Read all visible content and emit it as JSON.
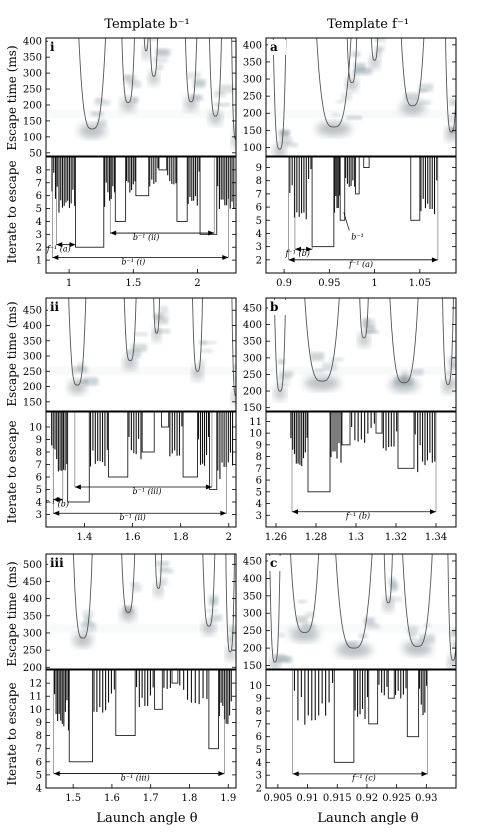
{
  "column_titles": [
    "Template b⁻¹",
    "Template f⁻¹"
  ],
  "x_axis_label": "Launch angle θ",
  "y_label_escape": "Escape time (ms)",
  "y_label_iterate": "Iterate to escape",
  "chart_data": [
    {
      "type": "heatmap",
      "panel": "i",
      "kind": "escape",
      "xlim": [
        0.82,
        2.3
      ],
      "ylim": [
        40,
        410
      ],
      "yticks": [
        50,
        100,
        150,
        200,
        250,
        300,
        350,
        400
      ],
      "curves": [
        {
          "center": 1.18,
          "bottom": 125,
          "width": 0.19
        },
        {
          "center": 1.46,
          "bottom": 208,
          "width": 0.1
        },
        {
          "center": 1.66,
          "bottom": 290,
          "width": 0.07
        },
        {
          "center": 1.6,
          "bottom": 370,
          "width": 0.05
        },
        {
          "center": 1.95,
          "bottom": 210,
          "width": 0.09
        },
        {
          "center": 2.14,
          "bottom": 165,
          "width": 0.09
        },
        {
          "center": 2.3,
          "bottom": 92,
          "width": 0.06
        }
      ]
    },
    {
      "type": "bar",
      "panel": "i",
      "kind": "iterate",
      "xlim": [
        0.82,
        2.3
      ],
      "ylim": [
        0,
        9
      ],
      "xticks": [
        1,
        1.5,
        2
      ],
      "xtick_labels": [
        "1",
        "1.5",
        "2"
      ],
      "yticks": [
        1,
        2,
        3,
        4,
        5,
        6,
        7,
        8
      ],
      "boxes": [
        {
          "x0": 1.05,
          "x1": 1.27,
          "y": 2
        },
        {
          "x0": 1.36,
          "x1": 1.44,
          "y": 4
        },
        {
          "x0": 1.52,
          "x1": 1.62,
          "y": 6
        },
        {
          "x0": 1.7,
          "x1": 1.76,
          "y": 8
        },
        {
          "x0": 1.84,
          "x1": 1.92,
          "y": 4
        },
        {
          "x0": 2.02,
          "x1": 2.15,
          "y": 3
        }
      ],
      "spike_clusters": [
        {
          "x0": 0.86,
          "x1": 1.05,
          "ymin": 3,
          "ymax": 8.6,
          "n": 14
        },
        {
          "x0": 1.27,
          "x1": 1.36,
          "ymin": 4,
          "ymax": 8.6,
          "n": 7
        },
        {
          "x0": 1.44,
          "x1": 1.52,
          "ymin": 5,
          "ymax": 8.6,
          "n": 6
        },
        {
          "x0": 1.62,
          "x1": 1.7,
          "ymin": 6,
          "ymax": 8.6,
          "n": 5
        },
        {
          "x0": 1.76,
          "x1": 1.84,
          "ymin": 6,
          "ymax": 8.6,
          "n": 5
        },
        {
          "x0": 1.92,
          "x1": 2.02,
          "ymin": 4,
          "ymax": 8.6,
          "n": 7
        },
        {
          "x0": 2.15,
          "x1": 2.29,
          "ymin": 3,
          "ymax": 8.6,
          "n": 10
        }
      ],
      "arrows": [
        {
          "x0": 0.9,
          "x1": 1.05,
          "y": 2.2,
          "label": "f⁻¹ (a)",
          "lx": 0.92,
          "ly": 1.9
        },
        {
          "x0": 1.32,
          "x1": 2.13,
          "y": 3.1,
          "label": "b⁻¹ (ii)",
          "lx": 1.6,
          "ly": 2.8
        },
        {
          "x0": 0.87,
          "x1": 2.24,
          "y": 1.2,
          "label": "b⁻¹ (i)",
          "lx": 1.5,
          "ly": 0.9
        }
      ]
    },
    {
      "type": "heatmap",
      "panel": "a",
      "kind": "escape",
      "xlim": [
        0.88,
        1.09
      ],
      "ylim": [
        75,
        420
      ],
      "yticks": [
        100,
        150,
        200,
        250,
        300,
        350,
        400
      ],
      "curves": [
        {
          "center": 0.955,
          "bottom": 160,
          "width": 0.035
        },
        {
          "center": 1.042,
          "bottom": 222,
          "width": 0.025
        },
        {
          "center": 0.975,
          "bottom": 290,
          "width": 0.012
        },
        {
          "center": 1.0,
          "bottom": 355,
          "width": 0.01
        },
        {
          "center": 0.895,
          "bottom": 95,
          "width": 0.012
        },
        {
          "center": 1.085,
          "bottom": 145,
          "width": 0.012
        }
      ]
    },
    {
      "type": "bar",
      "panel": "a",
      "kind": "iterate",
      "xlim": [
        0.88,
        1.09
      ],
      "ylim": [
        1,
        9.8
      ],
      "xticks": [
        0.9,
        0.95,
        1,
        1.05
      ],
      "xtick_labels": [
        "0.9",
        "0.95",
        "1",
        "1.05"
      ],
      "yticks": [
        2,
        3,
        4,
        5,
        6,
        7,
        8,
        9
      ],
      "boxes": [
        {
          "x0": 0.931,
          "x1": 0.955,
          "y": 3
        },
        {
          "x0": 0.962,
          "x1": 0.967,
          "y": 5
        },
        {
          "x0": 0.988,
          "x1": 0.994,
          "y": 9
        },
        {
          "x0": 1.04,
          "x1": 1.05,
          "y": 5
        },
        {
          "x0": 0.979,
          "x1": 0.983,
          "y": 7
        }
      ],
      "spike_clusters": [
        {
          "x0": 0.905,
          "x1": 0.931,
          "ymin": 3,
          "ymax": 9.5,
          "n": 10
        },
        {
          "x0": 0.955,
          "x1": 0.962,
          "ymin": 4,
          "ymax": 9.5,
          "n": 5
        },
        {
          "x0": 0.967,
          "x1": 0.979,
          "ymin": 6,
          "ymax": 9.5,
          "n": 6
        },
        {
          "x0": 1.05,
          "x1": 1.07,
          "ymin": 4,
          "ymax": 9.5,
          "n": 8
        }
      ],
      "arrows": [
        {
          "x0": 0.912,
          "x1": 0.931,
          "y": 2.8,
          "label": "f⁻¹ (b)",
          "lx": 0.915,
          "ly": 2.5
        },
        {
          "x0": 0.905,
          "x1": 1.07,
          "y": 2.0,
          "label": "f⁻¹ (a)",
          "lx": 0.985,
          "ly": 1.7
        }
      ],
      "pointer": {
        "label": "b⁻¹",
        "tx": 0.972,
        "ty": 4.0,
        "ax": 0.966,
        "ay": 5.6
      }
    },
    {
      "type": "heatmap",
      "panel": "ii",
      "kind": "escape",
      "xlim": [
        1.24,
        2.03
      ],
      "ylim": [
        120,
        490
      ],
      "yticks": [
        150,
        200,
        250,
        300,
        350,
        400,
        450
      ],
      "curves": [
        {
          "center": 1.37,
          "bottom": 205,
          "width": 0.065
        },
        {
          "center": 1.59,
          "bottom": 285,
          "width": 0.05
        },
        {
          "center": 1.7,
          "bottom": 375,
          "width": 0.03
        },
        {
          "center": 1.87,
          "bottom": 250,
          "width": 0.04
        },
        {
          "center": 2.03,
          "bottom": 170,
          "width": 0.03
        }
      ]
    },
    {
      "type": "bar",
      "panel": "ii",
      "kind": "iterate",
      "xlim": [
        1.24,
        2.03
      ],
      "ylim": [
        2,
        11.2
      ],
      "xticks": [
        1.4,
        1.6,
        1.8,
        2
      ],
      "xtick_labels": [
        "1.4",
        "1.6",
        "1.8",
        "2"
      ],
      "yticks": [
        3,
        4,
        5,
        6,
        7,
        8,
        9,
        10
      ],
      "boxes": [
        {
          "x0": 1.33,
          "x1": 1.42,
          "y": 4
        },
        {
          "x0": 1.5,
          "x1": 1.58,
          "y": 6
        },
        {
          "x0": 1.64,
          "x1": 1.69,
          "y": 8
        },
        {
          "x0": 1.72,
          "x1": 1.75,
          "y": 10
        },
        {
          "x0": 1.81,
          "x1": 1.87,
          "y": 6
        },
        {
          "x0": 1.92,
          "x1": 1.95,
          "y": 5
        }
      ],
      "spike_clusters": [
        {
          "x0": 1.26,
          "x1": 1.33,
          "ymin": 4,
          "ymax": 10.8,
          "n": 10
        },
        {
          "x0": 1.42,
          "x1": 1.5,
          "ymin": 5,
          "ymax": 10.8,
          "n": 8
        },
        {
          "x0": 1.58,
          "x1": 1.64,
          "ymin": 6,
          "ymax": 10.8,
          "n": 6
        },
        {
          "x0": 1.75,
          "x1": 1.81,
          "ymin": 6,
          "ymax": 10.8,
          "n": 6
        },
        {
          "x0": 1.87,
          "x1": 1.92,
          "ymin": 5,
          "ymax": 10.8,
          "n": 6
        },
        {
          "x0": 1.95,
          "x1": 2.02,
          "ymin": 4,
          "ymax": 10.8,
          "n": 8
        }
      ],
      "arrows": [
        {
          "x0": 1.27,
          "x1": 1.31,
          "y": 4.2,
          "label": "f⁻¹ (b)",
          "lx": 1.285,
          "ly": 3.9
        },
        {
          "x0": 1.36,
          "x1": 1.93,
          "y": 5.2,
          "label": "b⁻¹ (iii)",
          "lx": 1.66,
          "ly": 4.9
        },
        {
          "x0": 1.27,
          "x1": 1.99,
          "y": 3.1,
          "label": "b⁻¹ (ii)",
          "lx": 1.6,
          "ly": 2.8
        }
      ]
    },
    {
      "type": "heatmap",
      "panel": "b",
      "kind": "escape",
      "xlim": [
        1.255,
        1.35
      ],
      "ylim": [
        140,
        480
      ],
      "yticks": [
        150,
        200,
        250,
        300,
        350,
        400,
        450
      ],
      "curves": [
        {
          "center": 1.283,
          "bottom": 230,
          "width": 0.016
        },
        {
          "center": 1.324,
          "bottom": 225,
          "width": 0.013
        },
        {
          "center": 1.304,
          "bottom": 360,
          "width": 0.005
        },
        {
          "center": 1.262,
          "bottom": 200,
          "width": 0.005
        },
        {
          "center": 1.346,
          "bottom": 220,
          "width": 0.005
        }
      ]
    },
    {
      "type": "bar",
      "panel": "b",
      "kind": "iterate",
      "xlim": [
        1.255,
        1.35
      ],
      "ylim": [
        2,
        11.8
      ],
      "xticks": [
        1.26,
        1.28,
        1.3,
        1.32,
        1.34
      ],
      "xtick_labels": [
        "1.26",
        "1.28",
        "1.3",
        "1.32",
        "1.34"
      ],
      "yticks": [
        3,
        4,
        5,
        6,
        7,
        8,
        9,
        10,
        11
      ],
      "boxes": [
        {
          "x0": 1.276,
          "x1": 1.287,
          "y": 5
        },
        {
          "x0": 1.293,
          "x1": 1.297,
          "y": 9
        },
        {
          "x0": 1.31,
          "x1": 1.313,
          "y": 10
        },
        {
          "x0": 1.321,
          "x1": 1.329,
          "y": 7
        }
      ],
      "spike_clusters": [
        {
          "x0": 1.267,
          "x1": 1.276,
          "ymin": 5,
          "ymax": 11.5,
          "n": 10
        },
        {
          "x0": 1.287,
          "x1": 1.293,
          "ymin": 6,
          "ymax": 11.5,
          "n": 6
        },
        {
          "x0": 1.297,
          "x1": 1.31,
          "ymin": 8,
          "ymax": 11.5,
          "n": 8
        },
        {
          "x0": 1.313,
          "x1": 1.321,
          "ymin": 7,
          "ymax": 11.5,
          "n": 6
        },
        {
          "x0": 1.329,
          "x1": 1.34,
          "ymin": 5,
          "ymax": 11.5,
          "n": 9
        }
      ],
      "arrows": [
        {
          "x0": 1.268,
          "x1": 1.34,
          "y": 3.3,
          "label": "f⁻¹ (b)",
          "lx": 1.301,
          "ly": 3.0
        }
      ]
    },
    {
      "type": "heatmap",
      "panel": "iii",
      "kind": "escape",
      "xlim": [
        1.43,
        1.92
      ],
      "ylim": [
        195,
        530
      ],
      "yticks": [
        200,
        250,
        300,
        350,
        400,
        450,
        500
      ],
      "curves": [
        {
          "center": 1.525,
          "bottom": 285,
          "width": 0.045
        },
        {
          "center": 1.642,
          "bottom": 360,
          "width": 0.035
        },
        {
          "center": 1.72,
          "bottom": 430,
          "width": 0.02
        },
        {
          "center": 1.85,
          "bottom": 320,
          "width": 0.03
        },
        {
          "center": 1.905,
          "bottom": 245,
          "width": 0.02
        }
      ]
    },
    {
      "type": "bar",
      "panel": "iii",
      "kind": "iterate",
      "xlim": [
        1.43,
        1.92
      ],
      "ylim": [
        4,
        13
      ],
      "xticks": [
        1.5,
        1.6,
        1.7,
        1.8,
        1.9
      ],
      "xtick_labels": [
        "1.5",
        "1.6",
        "1.7",
        "1.8",
        "1.9"
      ],
      "yticks": [
        4,
        5,
        6,
        7,
        8,
        9,
        10,
        11,
        12
      ],
      "boxes": [
        {
          "x0": 1.49,
          "x1": 1.55,
          "y": 6
        },
        {
          "x0": 1.61,
          "x1": 1.66,
          "y": 8
        },
        {
          "x0": 1.71,
          "x1": 1.73,
          "y": 10
        },
        {
          "x0": 1.755,
          "x1": 1.77,
          "y": 12
        },
        {
          "x0": 1.85,
          "x1": 1.875,
          "y": 7
        }
      ],
      "spike_clusters": [
        {
          "x0": 1.45,
          "x1": 1.49,
          "ymin": 7,
          "ymax": 12.6,
          "n": 10
        },
        {
          "x0": 1.55,
          "x1": 1.61,
          "ymin": 8,
          "ymax": 12.6,
          "n": 8
        },
        {
          "x0": 1.66,
          "x1": 1.71,
          "ymin": 9,
          "ymax": 12.6,
          "n": 7
        },
        {
          "x0": 1.73,
          "x1": 1.755,
          "ymin": 11,
          "ymax": 12.6,
          "n": 3
        },
        {
          "x0": 1.77,
          "x1": 1.85,
          "ymin": 9,
          "ymax": 12.6,
          "n": 8
        },
        {
          "x0": 1.875,
          "x1": 1.91,
          "ymin": 7,
          "ymax": 12.6,
          "n": 8
        }
      ],
      "arrows": [
        {
          "x0": 1.45,
          "x1": 1.89,
          "y": 5.1,
          "label": "b⁻¹ (iii)",
          "lx": 1.66,
          "ly": 4.8
        }
      ]
    },
    {
      "type": "heatmap",
      "panel": "c",
      "kind": "escape",
      "xlim": [
        0.903,
        0.935
      ],
      "ylim": [
        140,
        470
      ],
      "yticks": [
        150,
        200,
        250,
        300,
        350,
        400,
        450
      ],
      "curves": [
        {
          "center": 0.9095,
          "bottom": 245,
          "width": 0.0045
        },
        {
          "center": 0.9178,
          "bottom": 200,
          "width": 0.0055
        },
        {
          "center": 0.9285,
          "bottom": 205,
          "width": 0.0045
        },
        {
          "center": 0.9236,
          "bottom": 330,
          "width": 0.0015
        },
        {
          "center": 0.9045,
          "bottom": 160,
          "width": 0.0015
        },
        {
          "center": 0.9345,
          "bottom": 165,
          "width": 0.0015
        }
      ]
    },
    {
      "type": "bar",
      "panel": "c",
      "kind": "iterate",
      "xlim": [
        0.903,
        0.935
      ],
      "ylim": [
        2,
        11.2
      ],
      "xticks": [
        0.905,
        0.91,
        0.915,
        0.92,
        0.925,
        0.93
      ],
      "xtick_labels": [
        "0.905",
        "0.91",
        "0.915",
        "0.92",
        "0.925",
        "0.93"
      ],
      "yticks": [
        2,
        3,
        4,
        5,
        6,
        7,
        8,
        9,
        10
      ],
      "boxes": [
        {
          "x0": 0.9145,
          "x1": 0.9178,
          "y": 4
        },
        {
          "x0": 0.9203,
          "x1": 0.9218,
          "y": 7
        },
        {
          "x0": 0.9236,
          "x1": 0.9246,
          "y": 9
        },
        {
          "x0": 0.9268,
          "x1": 0.9287,
          "y": 6
        }
      ],
      "spike_clusters": [
        {
          "x0": 0.9075,
          "x1": 0.9145,
          "ymin": 5,
          "ymax": 10.8,
          "n": 12
        },
        {
          "x0": 0.9178,
          "x1": 0.9203,
          "ymin": 6,
          "ymax": 10.8,
          "n": 6
        },
        {
          "x0": 0.9218,
          "x1": 0.9236,
          "ymin": 8,
          "ymax": 10.8,
          "n": 4
        },
        {
          "x0": 0.9246,
          "x1": 0.9268,
          "ymin": 8,
          "ymax": 10.8,
          "n": 5
        },
        {
          "x0": 0.9287,
          "x1": 0.9302,
          "ymin": 6,
          "ymax": 10.8,
          "n": 5
        }
      ],
      "arrows": [
        {
          "x0": 0.9075,
          "x1": 0.9302,
          "y": 3.1,
          "label": "f⁻¹ (c)",
          "lx": 0.9195,
          "ly": 2.8
        }
      ]
    }
  ]
}
